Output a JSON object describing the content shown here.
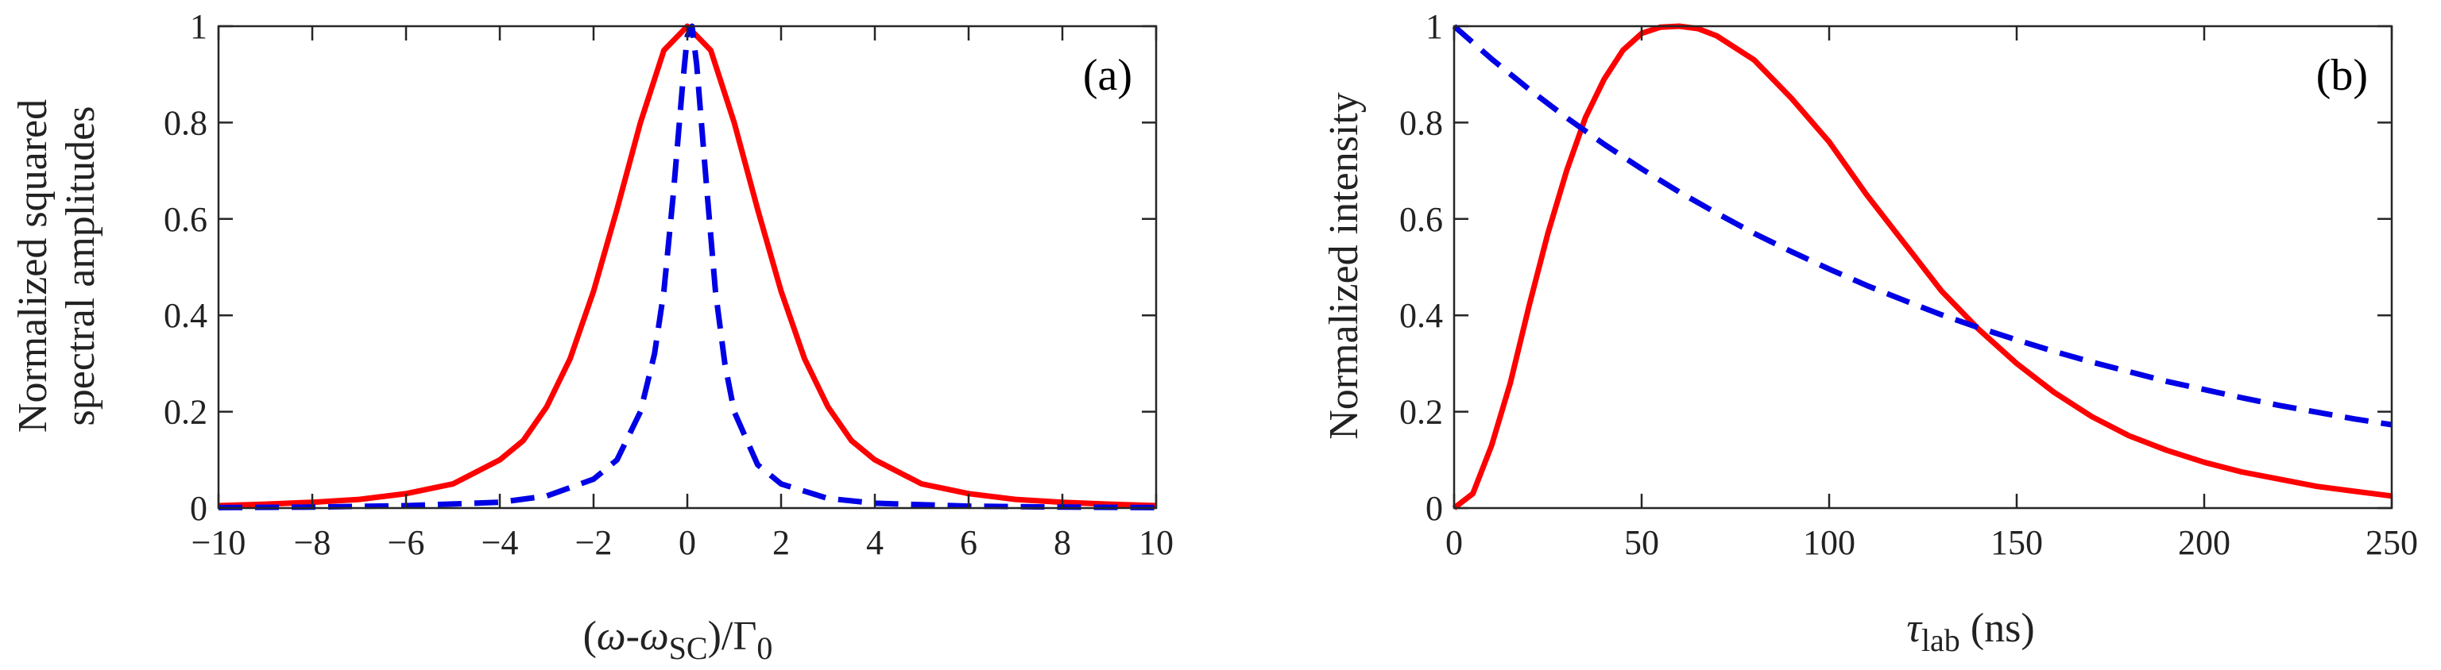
{
  "colors": {
    "red": "#ff0000",
    "blue": "#0000e6"
  },
  "chart_data": [
    {
      "type": "line",
      "panel_label": "(a)",
      "ylabel_lines": [
        "Normalized squared",
        "spectral amplitudes"
      ],
      "xlabel": {
        "open": "(",
        "omega": "ω",
        "dash": "-",
        "omega2": "ω",
        "sub": "SC",
        "close": ")/",
        "gamma": "Γ",
        "gamma_sub": "0"
      },
      "xlim": [
        -10,
        10
      ],
      "ylim": [
        0,
        1
      ],
      "xticks": [
        -10,
        -8,
        -6,
        -4,
        -2,
        0,
        2,
        4,
        6,
        8,
        10
      ],
      "xtick_labels": [
        "−10",
        "−8",
        "−6",
        "−4",
        "−2",
        "0",
        "2",
        "4",
        "6",
        "8",
        "10"
      ],
      "yticks": [
        0,
        0.2,
        0.4,
        0.6,
        0.8,
        1
      ],
      "ytick_labels": [
        "0",
        "0.2",
        "0.4",
        "0.6",
        "0.8",
        "1"
      ],
      "series": [
        {
          "name": "solid-red",
          "style": "solid",
          "x": [
            -10,
            -9,
            -8,
            -7,
            -6,
            -5,
            -4,
            -3.5,
            -3,
            -2.5,
            -2,
            -1.5,
            -1,
            -0.5,
            0,
            0.5,
            1,
            1.5,
            2,
            2.5,
            3,
            3.5,
            4,
            5,
            6,
            7,
            8,
            9,
            10
          ],
          "y": [
            0.005,
            0.008,
            0.012,
            0.018,
            0.03,
            0.05,
            0.1,
            0.14,
            0.21,
            0.31,
            0.45,
            0.62,
            0.8,
            0.95,
            1.0,
            0.95,
            0.8,
            0.62,
            0.45,
            0.31,
            0.21,
            0.14,
            0.1,
            0.05,
            0.03,
            0.018,
            0.012,
            0.008,
            0.005
          ]
        },
        {
          "name": "dashed-blue",
          "style": "dashed",
          "x": [
            -10,
            -8,
            -6,
            -4,
            -3,
            -2,
            -1.5,
            -1,
            -0.7,
            -0.5,
            -0.3,
            -0.1,
            0,
            0.1,
            0.2,
            0.4,
            0.6,
            0.8,
            1,
            1.5,
            2,
            3,
            4,
            6,
            8,
            10
          ],
          "y": [
            0.001,
            0.002,
            0.005,
            0.012,
            0.025,
            0.06,
            0.1,
            0.2,
            0.32,
            0.45,
            0.65,
            0.88,
            0.98,
            1.0,
            0.92,
            0.68,
            0.45,
            0.3,
            0.2,
            0.09,
            0.05,
            0.02,
            0.01,
            0.004,
            0.002,
            0.001
          ]
        }
      ]
    },
    {
      "type": "line",
      "panel_label": "(b)",
      "ylabel_lines": [
        "Normalized intensity"
      ],
      "xlabel": {
        "tau": "τ",
        "sub": "lab",
        "unit": " (ns)"
      },
      "xlim": [
        0,
        250
      ],
      "ylim": [
        0,
        1
      ],
      "xticks": [
        0,
        50,
        100,
        150,
        200,
        250
      ],
      "xtick_labels": [
        "0",
        "50",
        "100",
        "150",
        "200",
        "250"
      ],
      "yticks": [
        0,
        0.2,
        0.4,
        0.6,
        0.8,
        1
      ],
      "ytick_labels": [
        "0",
        "0.2",
        "0.4",
        "0.6",
        "0.8",
        "1"
      ],
      "series": [
        {
          "name": "solid-red",
          "style": "solid",
          "x": [
            0,
            5,
            10,
            15,
            20,
            25,
            30,
            35,
            40,
            45,
            50,
            55,
            60,
            65,
            70,
            80,
            90,
            100,
            110,
            120,
            130,
            140,
            150,
            160,
            170,
            180,
            190,
            200,
            210,
            220,
            230,
            240,
            250
          ],
          "y": [
            0,
            0.03,
            0.13,
            0.26,
            0.42,
            0.57,
            0.7,
            0.81,
            0.89,
            0.95,
            0.985,
            0.998,
            1.0,
            0.995,
            0.98,
            0.93,
            0.85,
            0.76,
            0.65,
            0.55,
            0.45,
            0.37,
            0.3,
            0.24,
            0.19,
            0.15,
            0.12,
            0.095,
            0.075,
            0.06,
            0.045,
            0.035,
            0.025
          ]
        },
        {
          "name": "dashed-blue",
          "style": "dashed",
          "x": [
            0,
            10,
            20,
            30,
            40,
            50,
            60,
            70,
            80,
            90,
            100,
            110,
            120,
            130,
            140,
            150,
            160,
            170,
            180,
            190,
            200,
            210,
            220,
            230,
            240,
            250
          ],
          "y": [
            1.0,
            0.932,
            0.869,
            0.81,
            0.755,
            0.704,
            0.656,
            0.612,
            0.57,
            0.532,
            0.496,
            0.462,
            0.431,
            0.401,
            0.374,
            0.349,
            0.325,
            0.303,
            0.283,
            0.263,
            0.246,
            0.229,
            0.213,
            0.199,
            0.185,
            0.173
          ]
        }
      ]
    }
  ]
}
